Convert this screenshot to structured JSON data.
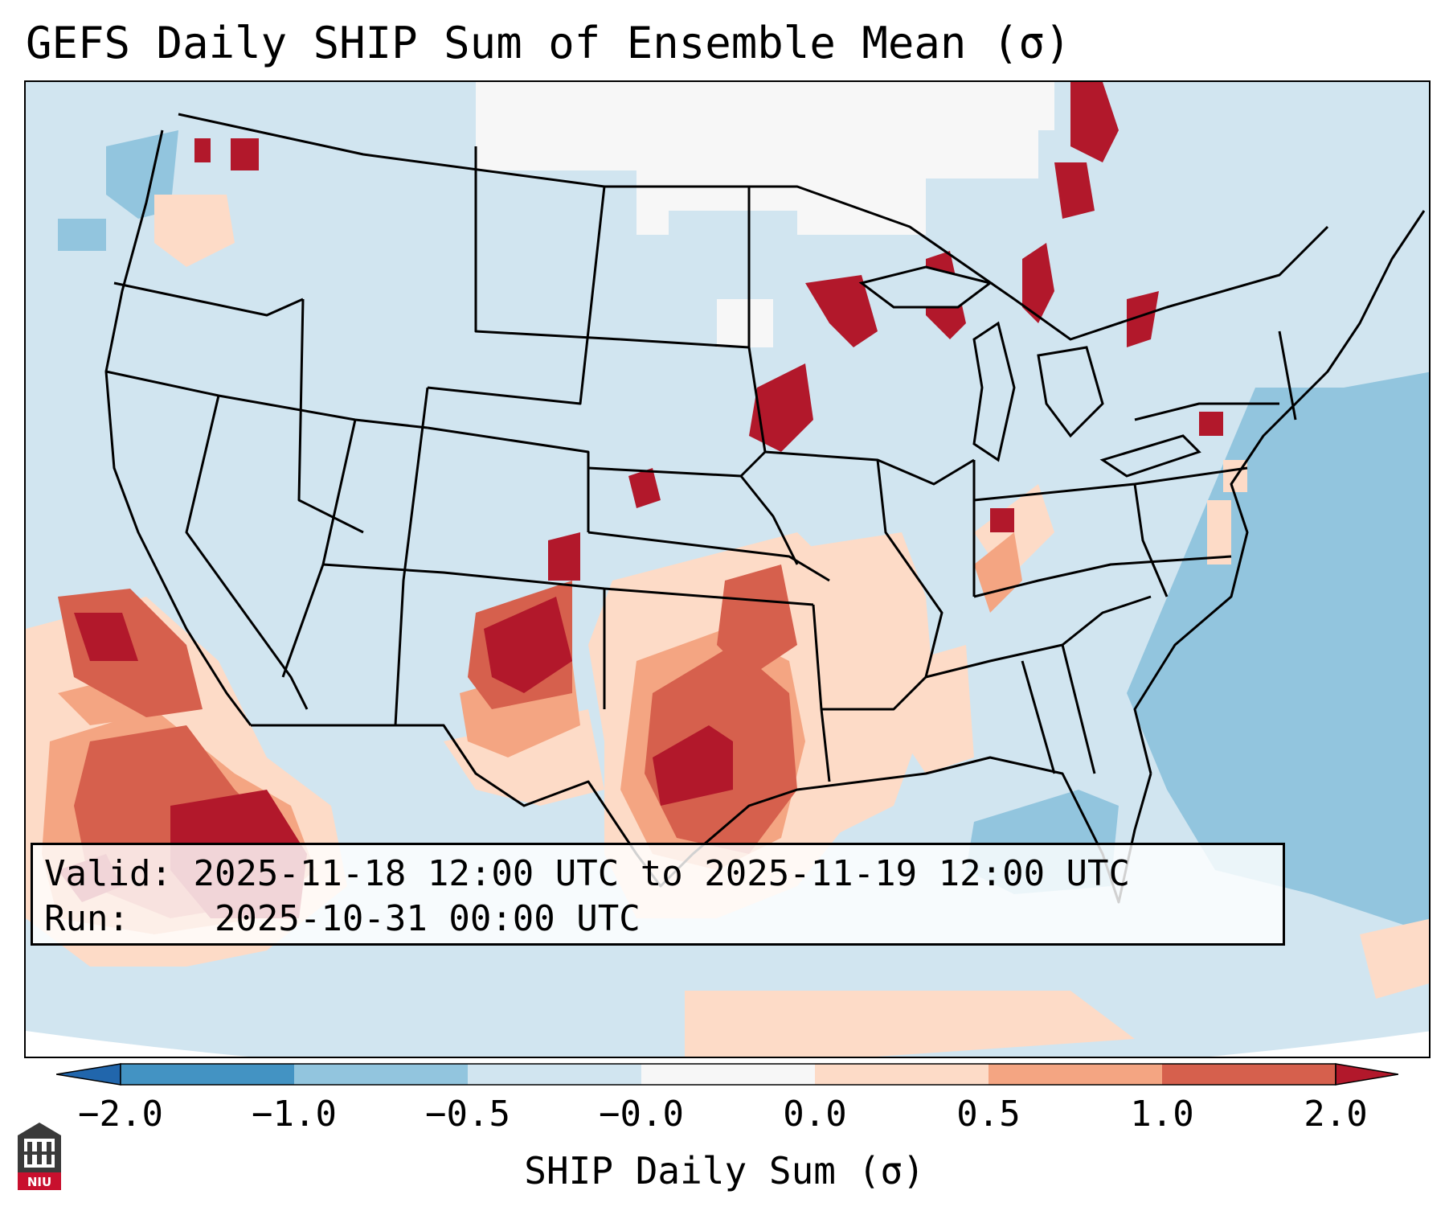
{
  "title": "GEFS Daily SHIP Sum of Ensemble Mean (σ)",
  "info": {
    "valid_label": "Valid:",
    "valid_value": "2025-11-18 12:00 UTC to 2025-11-19 12:00 UTC",
    "run_label": "Run:",
    "run_value": "2025-10-31 00:00 UTC"
  },
  "colorbar": {
    "label": "SHIP Daily Sum (σ)",
    "ticks": [
      "−2.0",
      "−1.0",
      "−0.5",
      "−0.0",
      "0.0",
      "0.5",
      "1.0",
      "2.0"
    ],
    "colors": {
      "below_min": "#2166ac",
      "neg_2_to_1": "#4393c3",
      "neg_1_to_05": "#92c5de",
      "neg_05_to_0": "#d1e5f0",
      "zero_band": "#f7f7f7",
      "pos_0_to_05": "#fddbc7",
      "pos_05_to_1": "#f4a582",
      "pos_1_to_2": "#d6604d",
      "above_max": "#b2182b"
    }
  },
  "logo": {
    "text": "NIU",
    "icon": "university-seal-icon"
  }
}
